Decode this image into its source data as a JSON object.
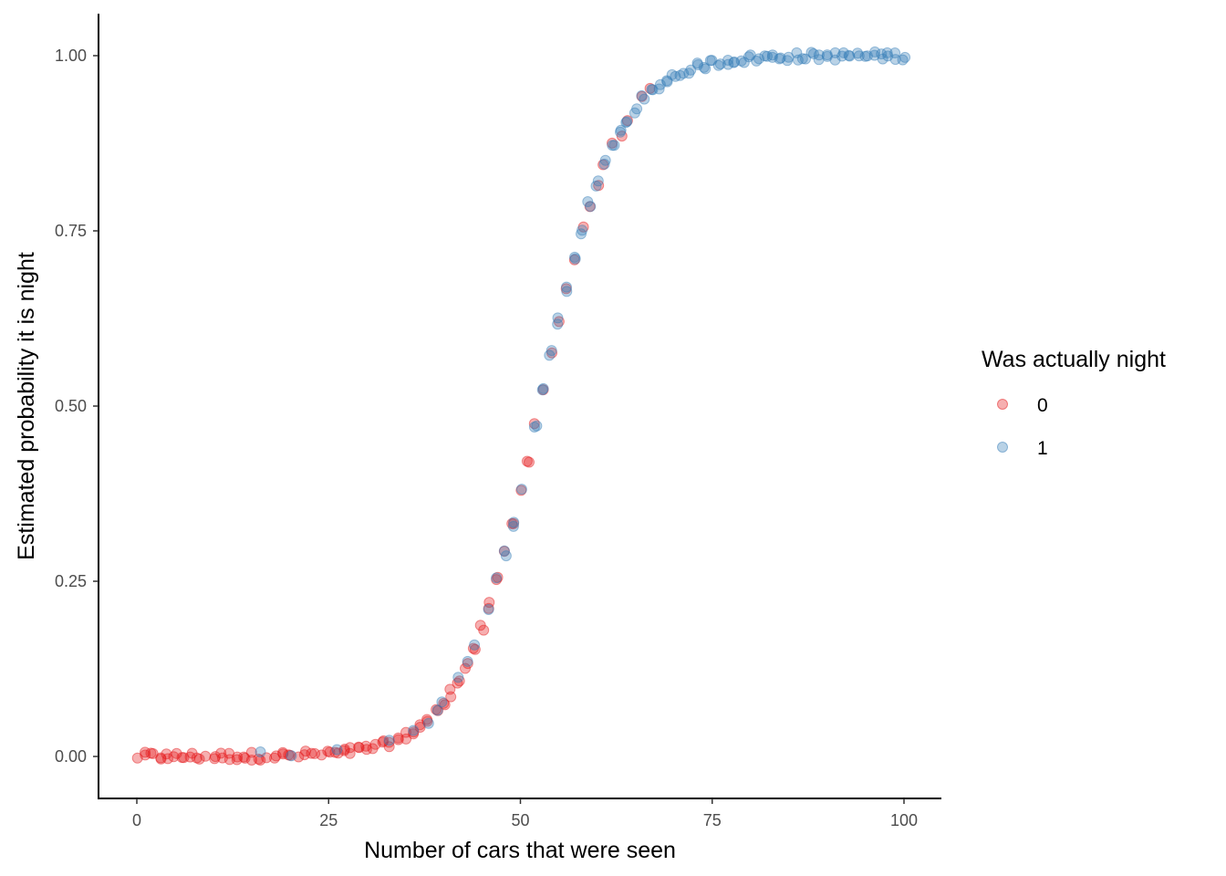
{
  "chart_data": {
    "type": "scatter",
    "title": "",
    "xlabel": "Number of cars that were seen",
    "ylabel": "Estimated probability it is night",
    "xlim": [
      -5,
      105
    ],
    "ylim": [
      -0.06,
      1.06
    ],
    "x_ticks": [
      0,
      25,
      50,
      75,
      100
    ],
    "x_tick_labels": [
      "0",
      "25",
      "50",
      "75",
      "100"
    ],
    "y_ticks": [
      0,
      0.25,
      0.5,
      0.75,
      1.0
    ],
    "y_tick_labels": [
      "0.00",
      "0.25",
      "0.50",
      "0.75",
      "1.00"
    ],
    "grid": false,
    "legend": {
      "title": "Was actually night",
      "position": "right"
    },
    "model": {
      "form": "logistic",
      "intercept": -10.5,
      "slope": 0.2
    },
    "series": [
      {
        "name": "0",
        "color": "#e41a1c",
        "opacity": 0.35,
        "x": [
          0,
          1,
          1,
          2,
          2,
          3,
          3,
          4,
          4,
          5,
          5,
          6,
          6,
          7,
          7,
          8,
          8,
          9,
          10,
          10,
          11,
          11,
          12,
          12,
          13,
          13,
          14,
          14,
          15,
          15,
          16,
          16,
          17,
          18,
          18,
          19,
          19,
          20,
          20,
          21,
          22,
          22,
          23,
          23,
          24,
          25,
          25,
          26,
          26,
          27,
          27,
          28,
          28,
          29,
          29,
          30,
          30,
          31,
          31,
          32,
          32,
          33,
          33,
          34,
          34,
          35,
          35,
          36,
          36,
          37,
          37,
          38,
          38,
          39,
          39,
          40,
          40,
          41,
          41,
          42,
          42,
          43,
          43,
          44,
          44,
          45,
          45,
          46,
          46,
          47,
          47,
          48,
          49,
          49,
          50,
          51,
          51,
          52,
          53,
          54,
          55,
          56,
          57,
          58,
          59,
          60,
          61,
          62,
          63,
          64,
          66,
          67
        ]
      },
      {
        "name": "1",
        "color": "#377eb8",
        "opacity": 0.35,
        "x": [
          16,
          20,
          26,
          33,
          36,
          38,
          39,
          40,
          42,
          43,
          44,
          46,
          47,
          48,
          48,
          49,
          49,
          50,
          52,
          52,
          53,
          53,
          54,
          54,
          55,
          55,
          56,
          56,
          57,
          57,
          58,
          58,
          59,
          59,
          60,
          60,
          61,
          61,
          62,
          62,
          63,
          63,
          64,
          64,
          65,
          65,
          66,
          66,
          67,
          67,
          68,
          68,
          69,
          69,
          70,
          70,
          71,
          71,
          72,
          72,
          73,
          73,
          74,
          74,
          75,
          75,
          76,
          76,
          77,
          77,
          78,
          78,
          79,
          79,
          80,
          80,
          81,
          81,
          82,
          82,
          83,
          83,
          84,
          84,
          85,
          85,
          86,
          86,
          87,
          87,
          88,
          88,
          89,
          89,
          90,
          90,
          91,
          91,
          92,
          92,
          93,
          93,
          94,
          94,
          95,
          95,
          96,
          96,
          97,
          97,
          98,
          98,
          99,
          99,
          100,
          100
        ]
      }
    ]
  }
}
